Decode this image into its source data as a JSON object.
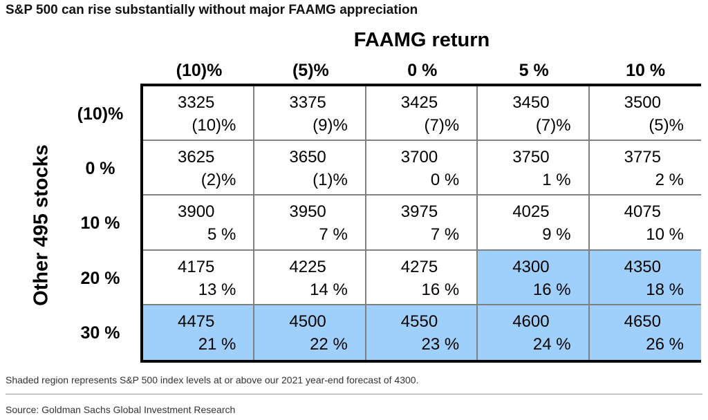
{
  "title": "S&P 500 can rise substantially without major FAAMG appreciation",
  "note": "Shaded region represents S&P 500 index levels at or above our 2021 year-end forecast of 4300.",
  "source": "Source: Goldman Sachs Global Investment Research",
  "colors": {
    "shaded": "#9fd0fb",
    "border": "#000000",
    "inner_line": "#7f7f7f"
  },
  "chart_data": {
    "type": "table",
    "col_header_title": "FAAMG return",
    "row_header_title": "Other 495 stocks",
    "columns": [
      "(10)%",
      "(5)%",
      "0 %",
      "5 %",
      "10 %"
    ],
    "rows": [
      "(10)%",
      "0 %",
      "10 %",
      "20 %",
      "30 %"
    ],
    "threshold": 4300,
    "cells": [
      [
        {
          "level": "3325",
          "pct": "(10)%"
        },
        {
          "level": "3375",
          "pct": "(9)%"
        },
        {
          "level": "3425",
          "pct": "(7)%"
        },
        {
          "level": "3450",
          "pct": "(7)%"
        },
        {
          "level": "3500",
          "pct": "(5)%"
        }
      ],
      [
        {
          "level": "3625",
          "pct": "(2)%"
        },
        {
          "level": "3650",
          "pct": "(1)%"
        },
        {
          "level": "3700",
          "pct": "0 %"
        },
        {
          "level": "3750",
          "pct": "1 %"
        },
        {
          "level": "3775",
          "pct": "2 %"
        }
      ],
      [
        {
          "level": "3900",
          "pct": "5 %"
        },
        {
          "level": "3950",
          "pct": "7 %"
        },
        {
          "level": "3975",
          "pct": "7 %"
        },
        {
          "level": "4025",
          "pct": "9 %"
        },
        {
          "level": "4075",
          "pct": "10 %"
        }
      ],
      [
        {
          "level": "4175",
          "pct": "13 %"
        },
        {
          "level": "4225",
          "pct": "14 %"
        },
        {
          "level": "4275",
          "pct": "16 %"
        },
        {
          "level": "4300",
          "pct": "16 %"
        },
        {
          "level": "4350",
          "pct": "18 %"
        }
      ],
      [
        {
          "level": "4475",
          "pct": "21 %"
        },
        {
          "level": "4500",
          "pct": "22 %"
        },
        {
          "level": "4550",
          "pct": "23 %"
        },
        {
          "level": "4600",
          "pct": "24 %"
        },
        {
          "level": "4650",
          "pct": "26 %"
        }
      ]
    ]
  }
}
